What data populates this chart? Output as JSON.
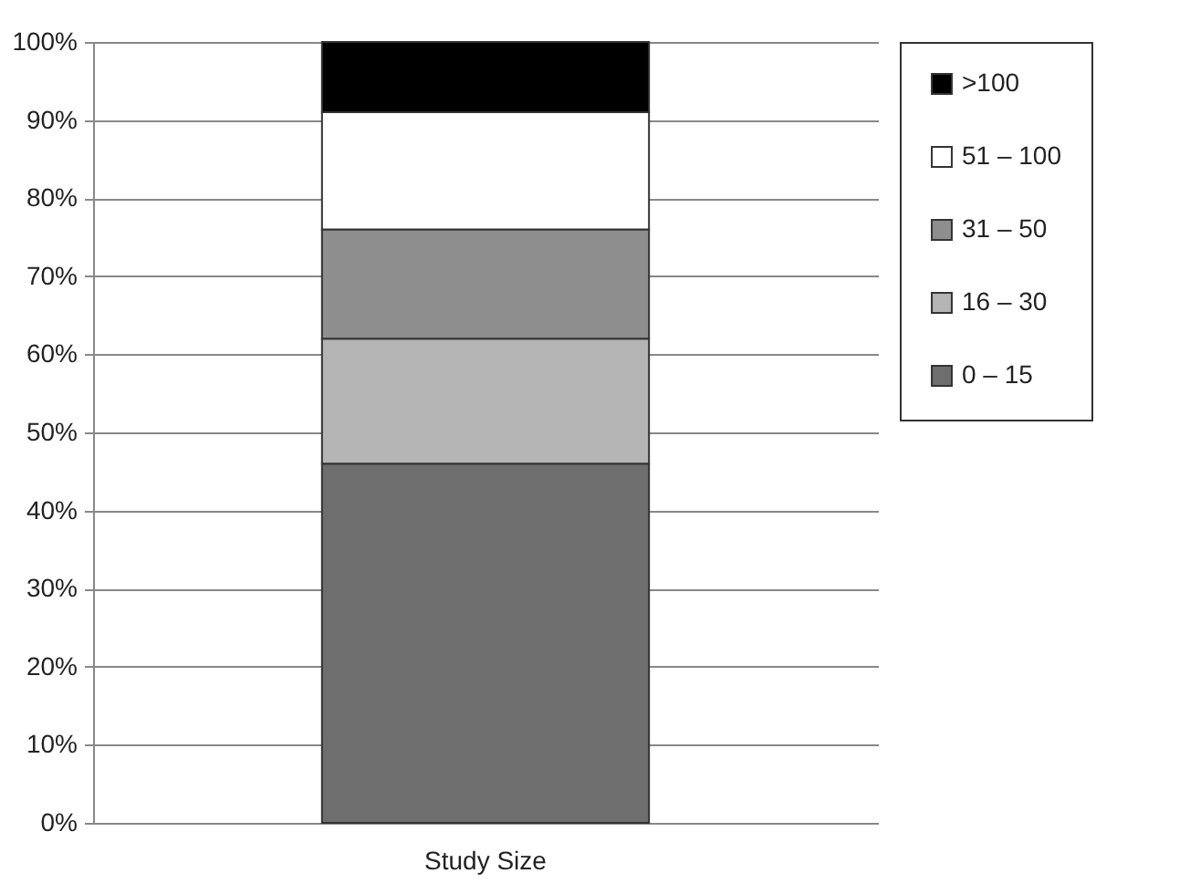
{
  "chart_data": {
    "type": "bar",
    "stacked": true,
    "categories": [
      "Study Size"
    ],
    "series": [
      {
        "name": "0 – 15",
        "color": "#6e6e6e",
        "values": [
          46
        ]
      },
      {
        "name": "16 – 30",
        "color": "#b4b4b4",
        "values": [
          16
        ]
      },
      {
        "name": "31 – 50",
        "color": "#8e8e8e",
        "values": [
          14
        ]
      },
      {
        "name": "51 – 100",
        "color": "#ffffff",
        "values": [
          15
        ]
      },
      {
        "name": ">100",
        "color": "#000000",
        "values": [
          9
        ]
      }
    ],
    "ylim": [
      0,
      100
    ],
    "yticks": [
      {
        "value": 0,
        "label": "0%"
      },
      {
        "value": 10,
        "label": "10%"
      },
      {
        "value": 20,
        "label": "20%"
      },
      {
        "value": 30,
        "label": "30%"
      },
      {
        "value": 40,
        "label": "40%"
      },
      {
        "value": 50,
        "label": "50%"
      },
      {
        "value": 60,
        "label": "60%"
      },
      {
        "value": 70,
        "label": "70%"
      },
      {
        "value": 80,
        "label": "80%"
      },
      {
        "value": 90,
        "label": "90%"
      },
      {
        "value": 100,
        "label": "100%"
      }
    ],
    "grid": "y",
    "legend": "right"
  }
}
